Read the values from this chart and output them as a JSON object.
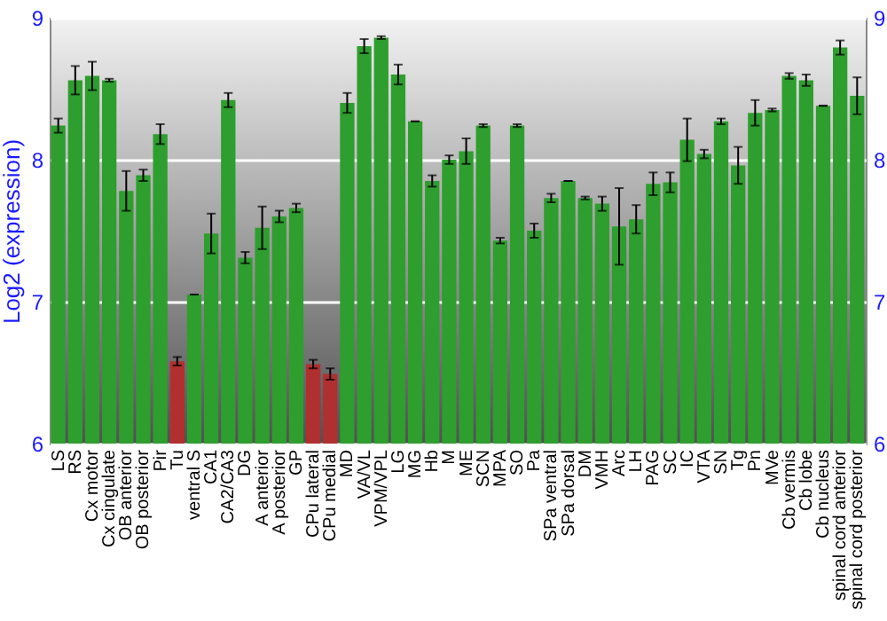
{
  "chart_data": {
    "type": "bar",
    "ylabel": "Log2 (expression)",
    "categories": [
      "LS",
      "RS",
      "Cx motor",
      "Cx cingulate",
      "OB anterior",
      "OB posterior",
      "Pir",
      "Tu",
      "ventral S",
      "CA1",
      "CA2/CA3",
      "DG",
      "A anterior",
      "A posterior",
      "GP",
      "CPu lateral",
      "CPu medial",
      "MD",
      "VA/VL",
      "VPM/VPL",
      "LG",
      "MG",
      "Hb",
      "M",
      "ME",
      "SCN",
      "MPA",
      "SO",
      "Pa",
      "SPa ventral",
      "SPa dorsal",
      "DM",
      "VMH",
      "Arc",
      "LH",
      "PAG",
      "SC",
      "IC",
      "VTA",
      "SN",
      "Tg",
      "Pn",
      "MVe",
      "Cb vermis",
      "Cb lobe",
      "Cb nucleus",
      "spinal cord anterior",
      "spinal cord posterior"
    ],
    "values": [
      8.24,
      8.56,
      8.59,
      8.56,
      7.78,
      7.89,
      8.18,
      6.58,
      7.05,
      7.48,
      8.42,
      7.31,
      7.52,
      7.6,
      7.66,
      6.56,
      6.49,
      8.4,
      8.8,
      8.86,
      8.6,
      8.27,
      7.85,
      8.0,
      8.06,
      8.24,
      7.43,
      8.24,
      7.5,
      7.73,
      7.85,
      7.73,
      7.69,
      7.53,
      7.58,
      7.83,
      7.84,
      8.14,
      8.04,
      8.27,
      7.96,
      8.33,
      8.35,
      8.59,
      8.56,
      8.38,
      8.79,
      8.45
    ],
    "errors": [
      0.05,
      0.1,
      0.1,
      0.01,
      0.14,
      0.04,
      0.07,
      0.03,
      0,
      0.14,
      0.05,
      0.04,
      0.15,
      0.04,
      0.03,
      0.03,
      0.04,
      0.07,
      0.05,
      0.01,
      0.07,
      0,
      0.04,
      0.03,
      0.09,
      0.01,
      0.02,
      0.01,
      0.05,
      0.03,
      0,
      0.01,
      0.05,
      0.27,
      0.1,
      0.08,
      0.07,
      0.15,
      0.03,
      0.02,
      0.13,
      0.09,
      0.01,
      0.02,
      0.04,
      0,
      0.05,
      0.13
    ],
    "colors": [
      "#2e9e2e",
      "#2e9e2e",
      "#2e9e2e",
      "#2e9e2e",
      "#2e9e2e",
      "#2e9e2e",
      "#2e9e2e",
      "#b03030",
      "#2e9e2e",
      "#2e9e2e",
      "#2e9e2e",
      "#2e9e2e",
      "#2e9e2e",
      "#2e9e2e",
      "#2e9e2e",
      "#b03030",
      "#b03030",
      "#2e9e2e",
      "#2e9e2e",
      "#2e9e2e",
      "#2e9e2e",
      "#2e9e2e",
      "#2e9e2e",
      "#2e9e2e",
      "#2e9e2e",
      "#2e9e2e",
      "#2e9e2e",
      "#2e9e2e",
      "#2e9e2e",
      "#2e9e2e",
      "#2e9e2e",
      "#2e9e2e",
      "#2e9e2e",
      "#2e9e2e",
      "#2e9e2e",
      "#2e9e2e",
      "#2e9e2e",
      "#2e9e2e",
      "#2e9e2e",
      "#2e9e2e",
      "#2e9e2e",
      "#2e9e2e",
      "#2e9e2e",
      "#2e9e2e",
      "#2e9e2e",
      "#2e9e2e",
      "#2e9e2e",
      "#2e9e2e"
    ],
    "ylim": [
      6,
      9
    ],
    "yticks": [
      6,
      7,
      8,
      9
    ],
    "y2lim": [
      6,
      9
    ],
    "y2ticks": [
      6,
      7,
      8,
      9
    ],
    "grid": "y"
  }
}
